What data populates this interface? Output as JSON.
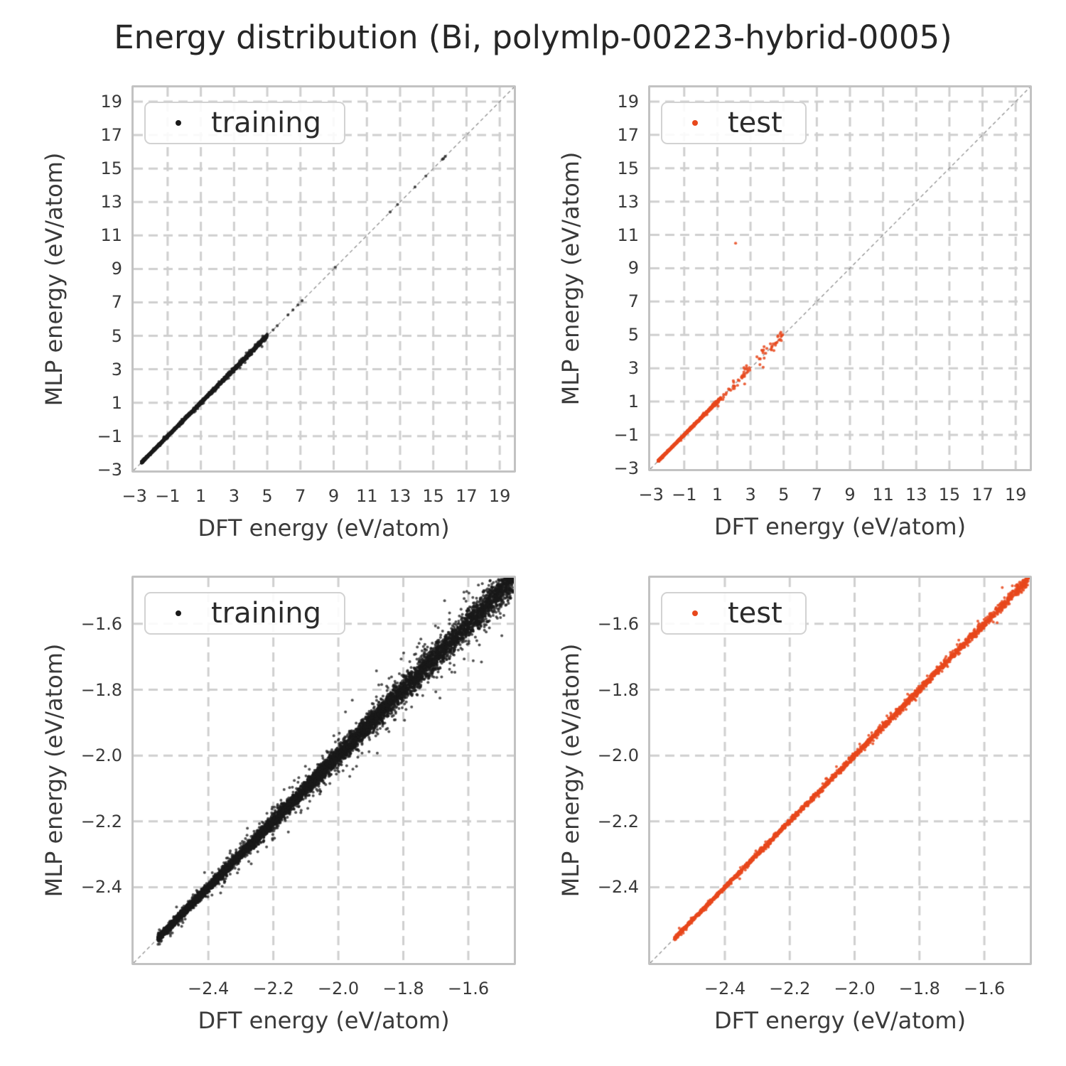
{
  "title": "Energy distribution (Bi, polymlp-00223-hybrid-0005)",
  "colors": {
    "training": "#1a1a1a",
    "test": "#e8481c",
    "grid": "#cfcfcf",
    "spine": "#c2c2c2",
    "diagonal": "#8f8f8f",
    "title_text": "#262626",
    "label_text": "#3a3a3a",
    "background": "#ffffff"
  },
  "chart_data": [
    {
      "position": "top-left",
      "type": "scatter",
      "series_name": "training",
      "color_key": "training",
      "alpha": 0.78,
      "point_radius": 2.1,
      "xlabel": "DFT energy (eV/atom)",
      "ylabel": "MLP energy (eV/atom)",
      "xlim": [
        -3.05,
        19.85
      ],
      "ylim": [
        -3.05,
        19.85
      ],
      "xticks": [
        -3,
        -1,
        1,
        3,
        5,
        7,
        9,
        11,
        13,
        15,
        17,
        19
      ],
      "yticks": [
        -3,
        -1,
        1,
        3,
        5,
        7,
        9,
        11,
        13,
        15,
        17,
        19
      ],
      "xtick_labels": [
        "−3",
        "−1",
        "1",
        "3",
        "5",
        "7",
        "9",
        "11",
        "13",
        "15",
        "17",
        "19"
      ],
      "ytick_labels": [
        "−3",
        "−1",
        "1",
        "3",
        "5",
        "7",
        "9",
        "11",
        "13",
        "15",
        "17",
        "19"
      ],
      "grid": true,
      "identity_line": true,
      "legend": {
        "label": "training",
        "location": "upper left"
      },
      "seed": 101,
      "clusters": [
        {
          "count": 4200,
          "min": -2.56,
          "max": 5.0,
          "bias": 2.4,
          "noise_lo": 0.015,
          "noise_hi": 0.05,
          "tail_frac": 0.08,
          "tail_mult": 2.5
        },
        {
          "points": [
            [
              5.35,
              5.35
            ],
            [
              5.6,
              5.6
            ],
            [
              6.25,
              6.25
            ],
            [
              6.55,
              6.55
            ],
            [
              6.85,
              6.85
            ],
            [
              7.1,
              7.1
            ],
            [
              9.1,
              9.1
            ],
            [
              12.4,
              12.4
            ],
            [
              12.85,
              12.85
            ],
            [
              13.9,
              13.9
            ],
            [
              14.55,
              14.55
            ],
            [
              15.55,
              15.55
            ],
            [
              15.62,
              15.6
            ],
            [
              15.72,
              15.72
            ]
          ]
        }
      ]
    },
    {
      "position": "top-right",
      "type": "scatter",
      "series_name": "test",
      "color_key": "test",
      "alpha": 0.85,
      "point_radius": 2.1,
      "xlabel": "DFT energy (eV/atom)",
      "ylabel": "MLP energy (eV/atom)",
      "xlim": [
        -3.05,
        19.85
      ],
      "ylim": [
        -3.05,
        19.85
      ],
      "xticks": [
        -3,
        -1,
        1,
        3,
        5,
        7,
        9,
        11,
        13,
        15,
        17,
        19
      ],
      "yticks": [
        -3,
        -1,
        1,
        3,
        5,
        7,
        9,
        11,
        13,
        15,
        17,
        19
      ],
      "xtick_labels": [
        "−3",
        "−1",
        "1",
        "3",
        "5",
        "7",
        "9",
        "11",
        "13",
        "15",
        "17",
        "19"
      ],
      "ytick_labels": [
        "−3",
        "−1",
        "1",
        "3",
        "5",
        "7",
        "9",
        "11",
        "13",
        "15",
        "17",
        "19"
      ],
      "grid": true,
      "identity_line": true,
      "legend": {
        "label": "test",
        "location": "upper left"
      },
      "seed": 202,
      "clusters": [
        {
          "count": 1700,
          "min": -2.56,
          "max": 1.1,
          "bias": 2.2,
          "noise_lo": 0.012,
          "noise_hi": 0.03,
          "tail_frac": 0.05,
          "tail_mult": 2.0
        },
        {
          "count": 85,
          "min": 0.6,
          "max": 4.95,
          "bias": 1.0,
          "noise_lo": 0.1,
          "noise_hi": 0.13,
          "tail_frac": 0.15,
          "tail_mult": 2.0
        },
        {
          "points": [
            [
              2.1,
              10.5
            ],
            [
              4.3,
              4.32
            ],
            [
              4.6,
              4.55
            ],
            [
              4.85,
              4.9
            ]
          ]
        }
      ]
    },
    {
      "position": "bottom-left",
      "type": "scatter",
      "series_name": "training",
      "color_key": "training",
      "alpha": 0.75,
      "point_radius": 2.0,
      "xlabel": "DFT energy (eV/atom)",
      "ylabel": "MLP energy (eV/atom)",
      "xlim": [
        -2.63,
        -1.46
      ],
      "ylim": [
        -2.63,
        -1.46
      ],
      "xticks": [
        -2.4,
        -2.2,
        -2.0,
        -1.8,
        -1.6
      ],
      "yticks": [
        -2.4,
        -2.2,
        -2.0,
        -1.8,
        -1.6
      ],
      "xtick_labels": [
        "−2.4",
        "−2.2",
        "−2.0",
        "−1.8",
        "−1.6"
      ],
      "ytick_labels": [
        "−1.6",
        "−1.8",
        "−2.0",
        "−2.2",
        "−2.4"
      ],
      "ytick_values_top_to_bottom": [
        -1.6,
        -1.8,
        -2.0,
        -2.2,
        -2.4
      ],
      "grid": true,
      "identity_line": true,
      "legend": {
        "label": "training",
        "location": "upper left"
      },
      "seed": 303,
      "clusters": [
        {
          "count": 9000,
          "min": -2.555,
          "max": -1.462,
          "bias": 1.25,
          "noise_lo": 0.004,
          "noise_hi": 0.02,
          "tail_frac": 0.08,
          "tail_mult": 2.8
        }
      ]
    },
    {
      "position": "bottom-right",
      "type": "scatter",
      "series_name": "test",
      "color_key": "test",
      "alpha": 0.85,
      "point_radius": 2.0,
      "xlabel": "DFT energy (eV/atom)",
      "ylabel": "MLP energy (eV/atom)",
      "xlim": [
        -2.63,
        -1.46
      ],
      "ylim": [
        -2.63,
        -1.46
      ],
      "xticks": [
        -2.4,
        -2.2,
        -2.0,
        -1.8,
        -1.6
      ],
      "yticks": [
        -2.4,
        -2.2,
        -2.0,
        -1.8,
        -1.6
      ],
      "xtick_labels": [
        "−2.4",
        "−2.2",
        "−2.0",
        "−1.8",
        "−1.6"
      ],
      "ytick_labels": [
        "−1.6",
        "−1.8",
        "−2.0",
        "−2.2",
        "−2.4"
      ],
      "grid": true,
      "identity_line": true,
      "legend": {
        "label": "test",
        "location": "upper left"
      },
      "seed": 404,
      "clusters": [
        {
          "count": 2600,
          "min": -2.555,
          "max": -1.462,
          "bias": 1.25,
          "noise_lo": 0.0022,
          "noise_hi": 0.005,
          "tail_frac": 0.06,
          "tail_mult": 2.5
        }
      ]
    }
  ]
}
